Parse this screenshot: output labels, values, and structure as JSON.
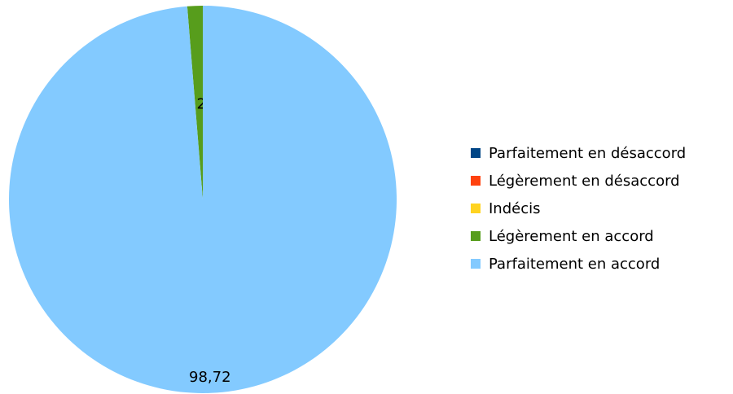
{
  "chart_data": {
    "type": "pie",
    "categories": [
      "Parfaitement en désaccord",
      "Légèrement en désaccord",
      "Indécis",
      "Légèrement en accord",
      "Parfaitement en accord"
    ],
    "values": [
      0,
      0,
      0,
      1.28,
      98.72
    ],
    "value_labels": [
      null,
      null,
      null,
      "1,28",
      "98,72"
    ],
    "colors": [
      "#004586",
      "#ff420e",
      "#ffd320",
      "#579d1c",
      "#83caff"
    ],
    "legend": "right"
  }
}
